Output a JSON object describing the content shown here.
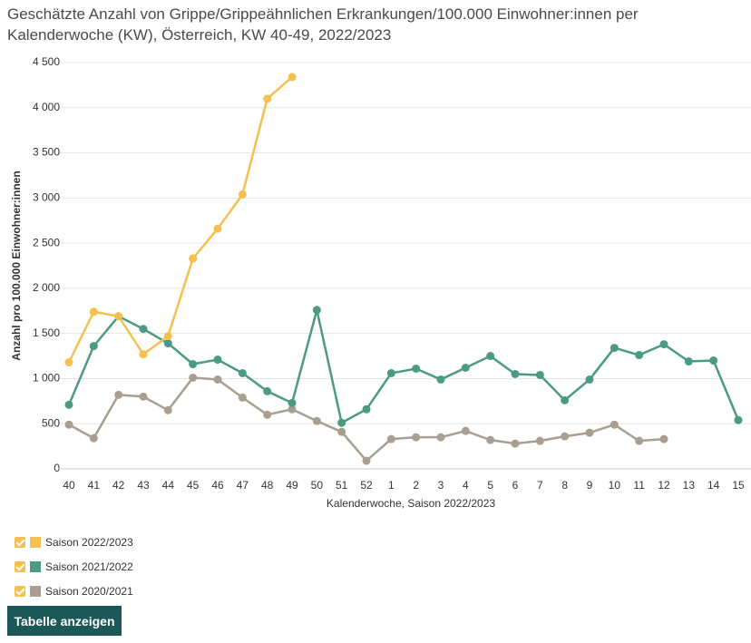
{
  "chart_data": {
    "type": "line",
    "title": "Geschätzte Anzahl von Grippe/Grippeähnlichen Erkrankungen/100.000 Einwohner:innen per Kalenderwoche (KW), Österreich, KW 40-49, 2022/2023",
    "x_label": "Kalenderwoche, Saison 2022/2023",
    "y_label": "Anzahl pro 100.000 Einwohner:innen",
    "categories": [
      "40",
      "41",
      "42",
      "43",
      "44",
      "45",
      "46",
      "47",
      "48",
      "49",
      "50",
      "51",
      "52",
      "1",
      "2",
      "3",
      "4",
      "5",
      "6",
      "7",
      "8",
      "9",
      "10",
      "11",
      "12",
      "13",
      "14",
      "15"
    ],
    "series": [
      {
        "name": "Saison 2022/2023",
        "color": "#f5c04f",
        "values": [
          1180,
          1740,
          1690,
          1270,
          1470,
          2330,
          2660,
          3040,
          4100,
          4340,
          null,
          null,
          null,
          null,
          null,
          null,
          null,
          null,
          null,
          null,
          null,
          null,
          null,
          null,
          null,
          null,
          null,
          null
        ]
      },
      {
        "name": "Saison 2021/2022",
        "color": "#4a9a84",
        "values": [
          710,
          1360,
          1690,
          1550,
          1390,
          1160,
          1210,
          1060,
          860,
          730,
          1760,
          510,
          660,
          1060,
          1110,
          990,
          1120,
          1250,
          1050,
          1040,
          760,
          990,
          1340,
          1260,
          1380,
          1190,
          1200,
          540
        ]
      },
      {
        "name": "Saison 2020/2021",
        "color": "#a89f91",
        "values": [
          490,
          340,
          820,
          800,
          650,
          1010,
          990,
          790,
          600,
          660,
          530,
          410,
          90,
          330,
          350,
          350,
          420,
          320,
          280,
          310,
          360,
          400,
          490,
          310,
          330,
          null,
          null,
          null
        ]
      }
    ],
    "ylim": [
      0,
      4500
    ],
    "yticks": [
      0,
      500,
      {
        "value": 1000,
        "label": "1 000"
      },
      {
        "value": 1500,
        "label": "1 500"
      },
      {
        "value": 2000,
        "label": "2 000"
      },
      {
        "value": 2500,
        "label": "2 500"
      },
      {
        "value": 3000,
        "label": "3 000"
      },
      {
        "value": 3500,
        "label": "3 500"
      },
      {
        "value": 4000,
        "label": "4 000"
      },
      {
        "value": 4500,
        "label": "4 500"
      }
    ],
    "grid": true,
    "button": "Tabelle anzeigen"
  }
}
